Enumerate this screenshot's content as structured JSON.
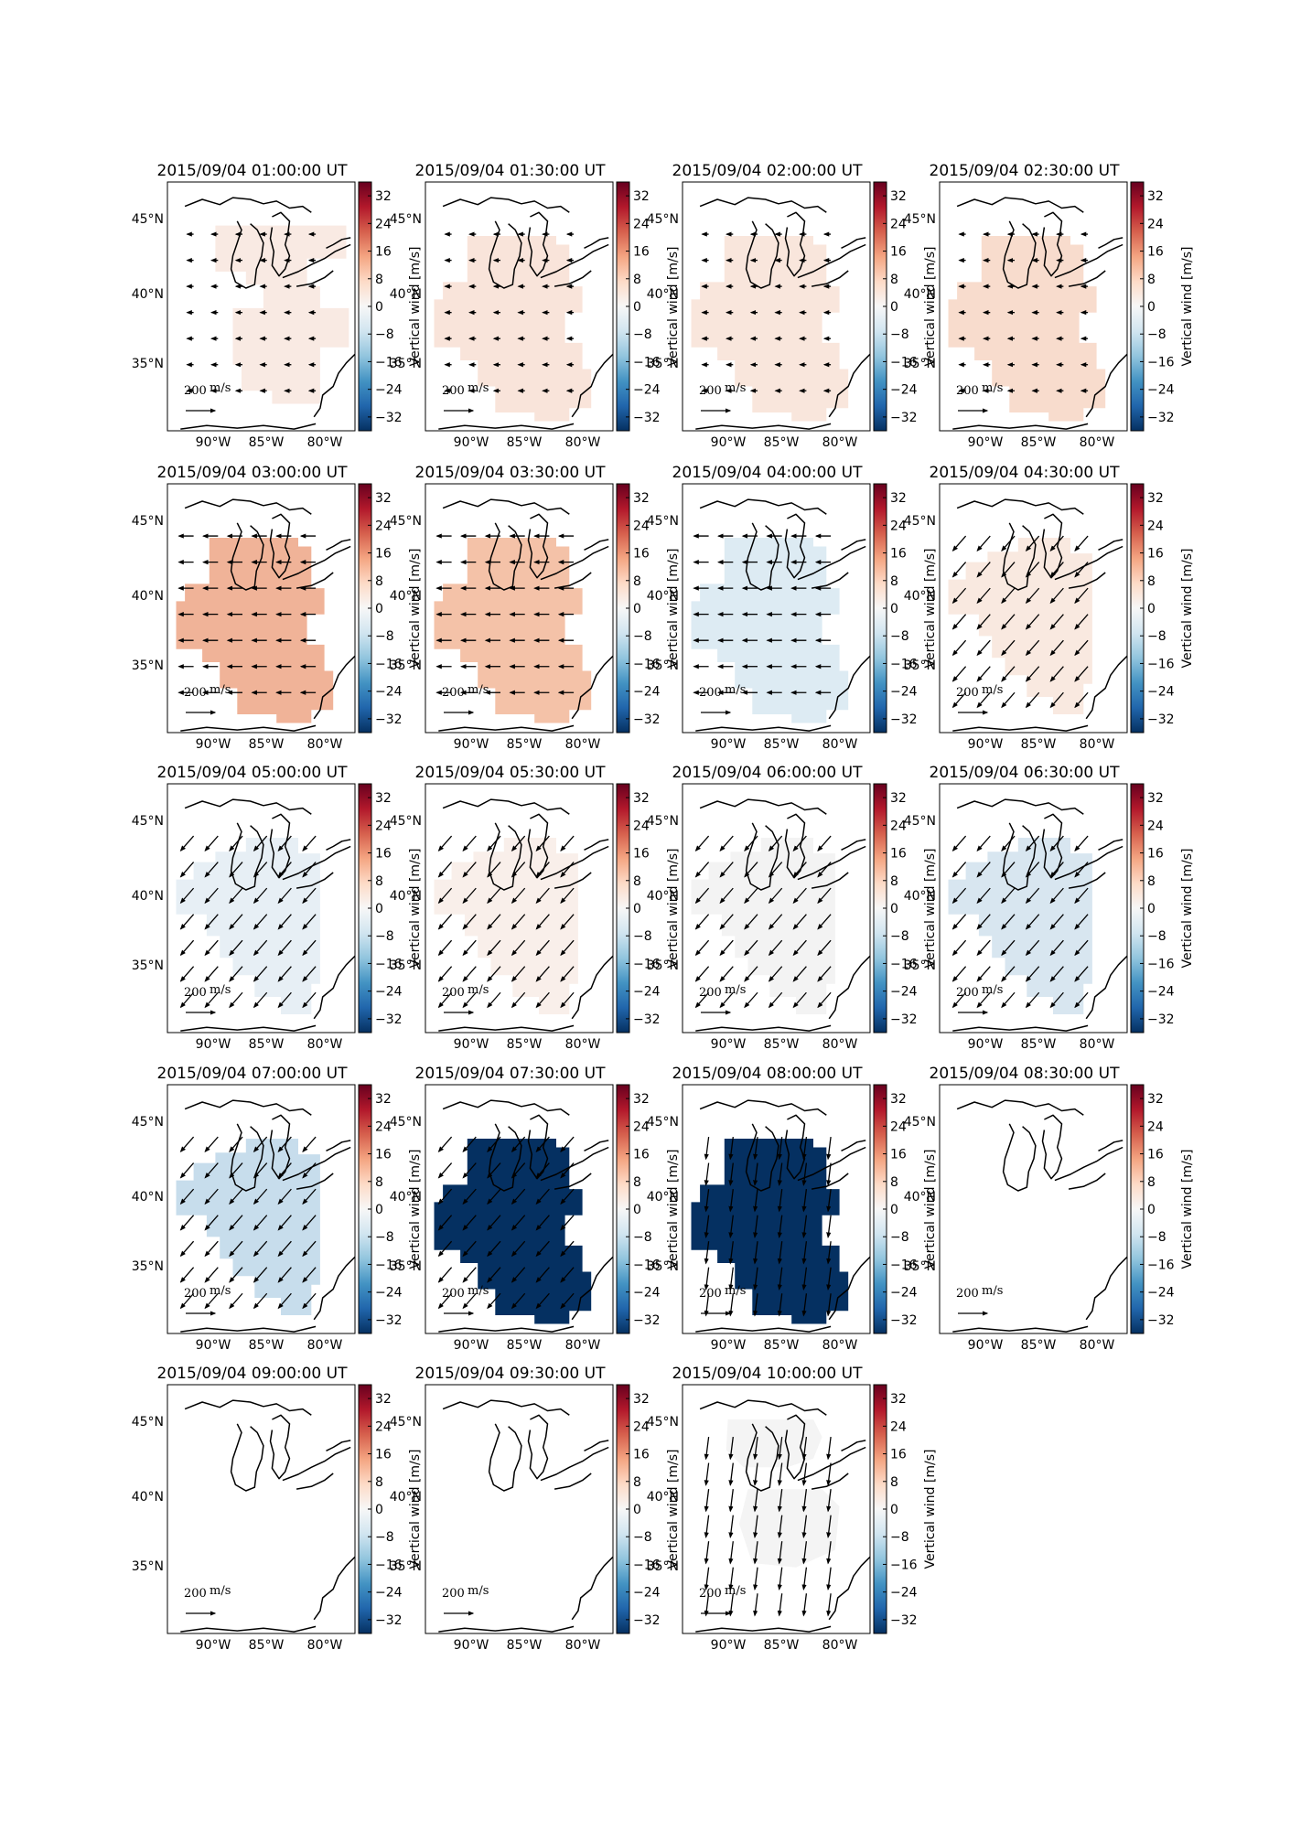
{
  "figure": {
    "colorbar": {
      "label": "Vertical wind [m/s]",
      "ticks": [
        "32",
        "24",
        "16",
        "8",
        "0",
        "−8",
        "−16",
        "−24",
        "−32"
      ],
      "range": [
        -36,
        36
      ],
      "colormap": "RdBu_r",
      "colors": [
        "#053061",
        "#2166ac",
        "#4393c3",
        "#92c5de",
        "#d1e5f0",
        "#f7f7f7",
        "#fddbc7",
        "#f4a582",
        "#d6604d",
        "#b2182b",
        "#67001f"
      ]
    },
    "axes": {
      "lat_labels": [
        "45°N",
        "40°N",
        "35°N"
      ],
      "lon_labels": [
        "90°W",
        "85°W",
        "80°W"
      ]
    },
    "scale_label": "200",
    "scale_units": "m/s",
    "panels": [
      {
        "title": "2015/09/04 01:00:00 UT",
        "region": "dumbbell",
        "fill_color": "#f9eae3",
        "wind_vectors": "short westward"
      },
      {
        "title": "2015/09/04 01:30:00 UT",
        "region": "broad",
        "fill_color": "#f9e4da",
        "wind_vectors": "short westward"
      },
      {
        "title": "2015/09/04 02:00:00 UT",
        "region": "broad",
        "fill_color": "#f9e6dc",
        "wind_vectors": "short westward"
      },
      {
        "title": "2015/09/04 02:30:00 UT",
        "region": "broad",
        "fill_color": "#f8dccd",
        "wind_vectors": "short westward"
      },
      {
        "title": "2015/09/04 03:00:00 UT",
        "region": "broad",
        "fill_color": "#f0b398",
        "wind_vectors": "westward"
      },
      {
        "title": "2015/09/04 03:30:00 UT",
        "region": "broad",
        "fill_color": "#f4c2a8",
        "wind_vectors": "westward"
      },
      {
        "title": "2015/09/04 04:00:00 UT",
        "region": "broad",
        "fill_color": "#ddebf3",
        "wind_vectors": "westward"
      },
      {
        "title": "2015/09/04 04:30:00 UT",
        "region": "mid",
        "fill_color": "#f9e9e0",
        "wind_vectors": "south-westward"
      },
      {
        "title": "2015/09/04 05:00:00 UT",
        "region": "mid",
        "fill_color": "#e7eff5",
        "wind_vectors": "south-westward"
      },
      {
        "title": "2015/09/04 05:30:00 UT",
        "region": "mid",
        "fill_color": "#f9efea",
        "wind_vectors": "south-westward"
      },
      {
        "title": "2015/09/04 06:00:00 UT",
        "region": "mid",
        "fill_color": "#f3f3f3",
        "wind_vectors": "south-westward"
      },
      {
        "title": "2015/09/04 06:30:00 UT",
        "region": "mid",
        "fill_color": "#d8e6f0",
        "wind_vectors": "south-westward"
      },
      {
        "title": "2015/09/04 07:00:00 UT",
        "region": "mid",
        "fill_color": "#c7ddec",
        "wind_vectors": "south-westward"
      },
      {
        "title": "2015/09/04 07:30:00 UT",
        "region": "broad",
        "fill_color": "#053061",
        "wind_vectors": "south-westward"
      },
      {
        "title": "2015/09/04 08:00:00 UT",
        "region": "broad",
        "fill_color": "#053061",
        "wind_vectors": "southward"
      },
      {
        "title": "2015/09/04 08:30:00 UT",
        "region": "none",
        "fill_color": "#ffffff",
        "wind_vectors": "none"
      },
      {
        "title": "2015/09/04 09:00:00 UT",
        "region": "none",
        "fill_color": "#ffffff",
        "wind_vectors": "none"
      },
      {
        "title": "2015/09/04 09:30:00 UT",
        "region": "none",
        "fill_color": "#ffffff",
        "wind_vectors": "none"
      },
      {
        "title": "2015/09/04 10:00:00 UT",
        "region": "blobs",
        "fill_color": "#f4f4f4",
        "wind_vectors": "southward"
      }
    ]
  }
}
